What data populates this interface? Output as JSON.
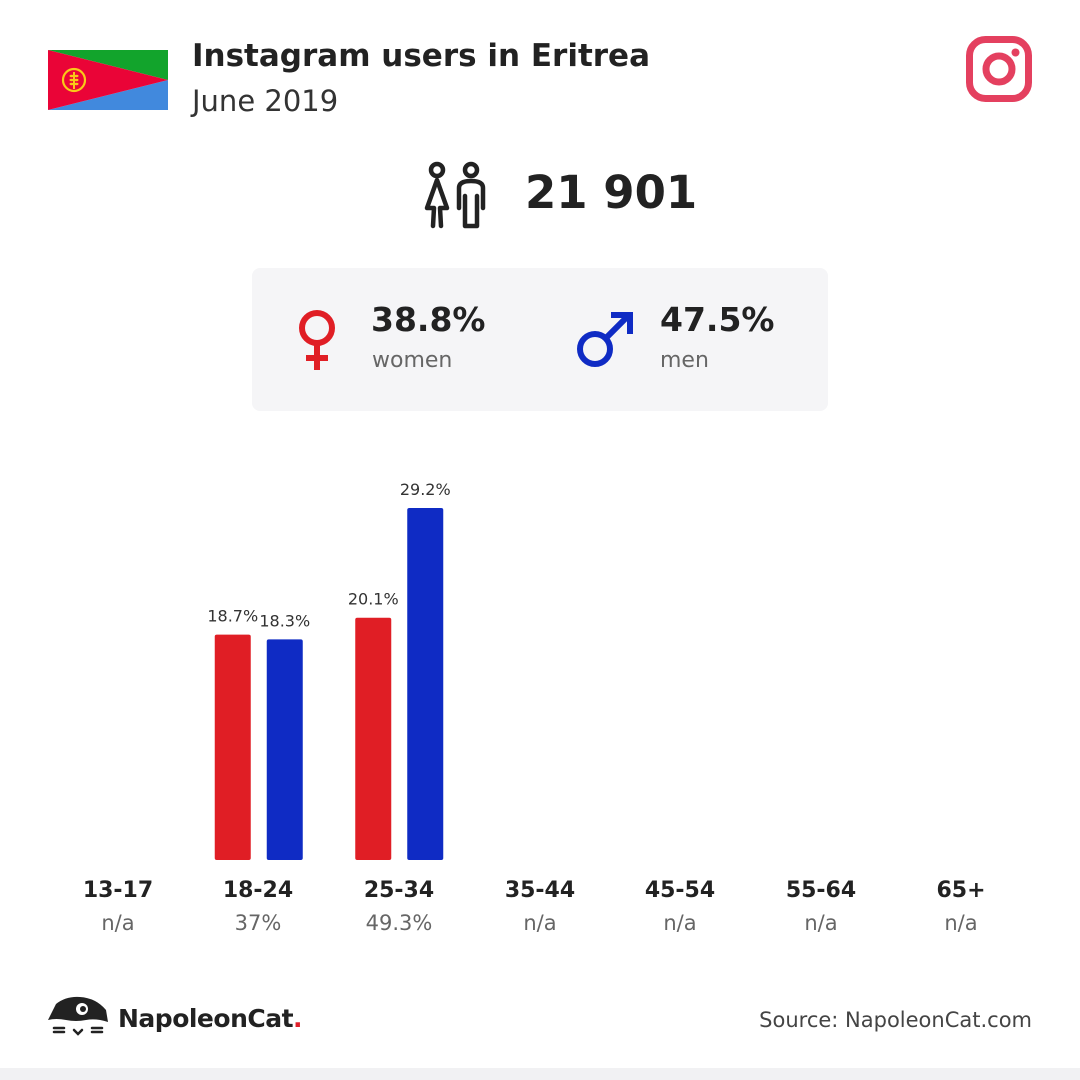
{
  "header": {
    "title": "Instagram users in Eritrea",
    "subtitle": "June 2019"
  },
  "colors": {
    "women": "#e01e25",
    "men": "#0f2bc4",
    "card_background": "#f5f5f7",
    "instagram": "#e4405f"
  },
  "icons": {
    "flag": "eritrea-flag-icon",
    "platform": "instagram-icon",
    "users": "users-icon",
    "women": "venus-icon",
    "men": "mars-icon",
    "brand": "napoleoncat-logo-icon"
  },
  "total": {
    "value": "21 901"
  },
  "gender": {
    "women": {
      "percent": "38.8%",
      "label": "women"
    },
    "men": {
      "percent": "47.5%",
      "label": "men"
    }
  },
  "chart_data": {
    "type": "bar",
    "categories": [
      "13-17",
      "18-24",
      "25-34",
      "35-44",
      "45-54",
      "55-64",
      "65+"
    ],
    "category_shares": [
      "n/a",
      "37%",
      "49.3%",
      "n/a",
      "n/a",
      "n/a",
      "n/a"
    ],
    "series": [
      {
        "name": "women",
        "color": "#e01e25",
        "values": [
          null,
          18.7,
          20.1,
          null,
          null,
          null,
          null
        ],
        "labels": [
          "",
          "18.7%",
          "20.1%",
          "",
          "",
          "",
          ""
        ]
      },
      {
        "name": "men",
        "color": "#0f2bc4",
        "values": [
          null,
          18.3,
          29.2,
          null,
          null,
          null,
          null
        ],
        "labels": [
          "",
          "18.3%",
          "29.2%",
          "",
          "",
          "",
          ""
        ]
      }
    ],
    "ylim": [
      0,
      29.2
    ],
    "grid": false,
    "legend": "none"
  },
  "footer": {
    "brand": "NapoleonCat",
    "brand_dot": ".",
    "source": "Source: NapoleonCat.com"
  }
}
